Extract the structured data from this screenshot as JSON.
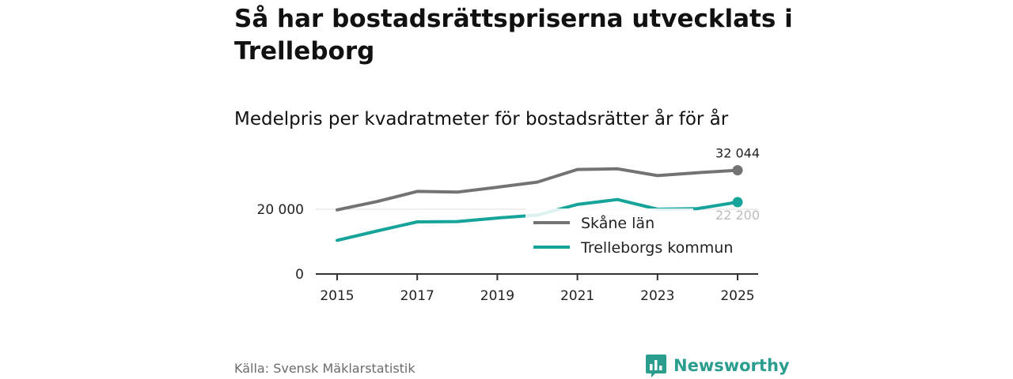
{
  "header": {
    "title": "Så har bostadsrättspriserna utvecklats i Trelleborg",
    "subtitle": "Medelpris per kvadratmeter för bostadsrätter år för år"
  },
  "footer": {
    "source": "Källa: Svensk Mäklarstatistik",
    "brand": "Newsworthy",
    "brand_icon": "bar-chart-logo-icon"
  },
  "colors": {
    "skane": "#737373",
    "trelleborg": "#16a39a",
    "axis": "#333333",
    "gridline": "#dddddd",
    "brand": "#2a9d8f"
  },
  "chart_data": {
    "type": "line",
    "title": "Så har bostadsrättspriserna utvecklats i Trelleborg",
    "subtitle": "Medelpris per kvadratmeter för bostadsrätter år för år",
    "xlabel": "",
    "ylabel": "",
    "x": [
      2015,
      2016,
      2017,
      2018,
      2019,
      2020,
      2021,
      2022,
      2023,
      2024,
      2025
    ],
    "x_ticks": [
      2015,
      2017,
      2019,
      2021,
      2023,
      2025
    ],
    "x_tick_labels": [
      "2015",
      "2017",
      "2019",
      "2021",
      "2023",
      "2025"
    ],
    "y_ticks": [
      0,
      20000
    ],
    "y_tick_labels": [
      "0",
      "20 000"
    ],
    "ylim": [
      0,
      33000
    ],
    "grid": true,
    "legend_position": "right-middle",
    "series": [
      {
        "name": "Skåne län",
        "color": "#737373",
        "values": [
          19800,
          22400,
          25500,
          25300,
          26800,
          28400,
          32300,
          32500,
          30400,
          31300,
          32044
        ],
        "end_label": "32 044"
      },
      {
        "name": "Trelleborgs kommun",
        "color": "#16a39a",
        "values": [
          10400,
          13300,
          16100,
          16200,
          17300,
          18200,
          21500,
          23000,
          20000,
          20200,
          22200
        ],
        "end_label": "22 200"
      }
    ]
  }
}
